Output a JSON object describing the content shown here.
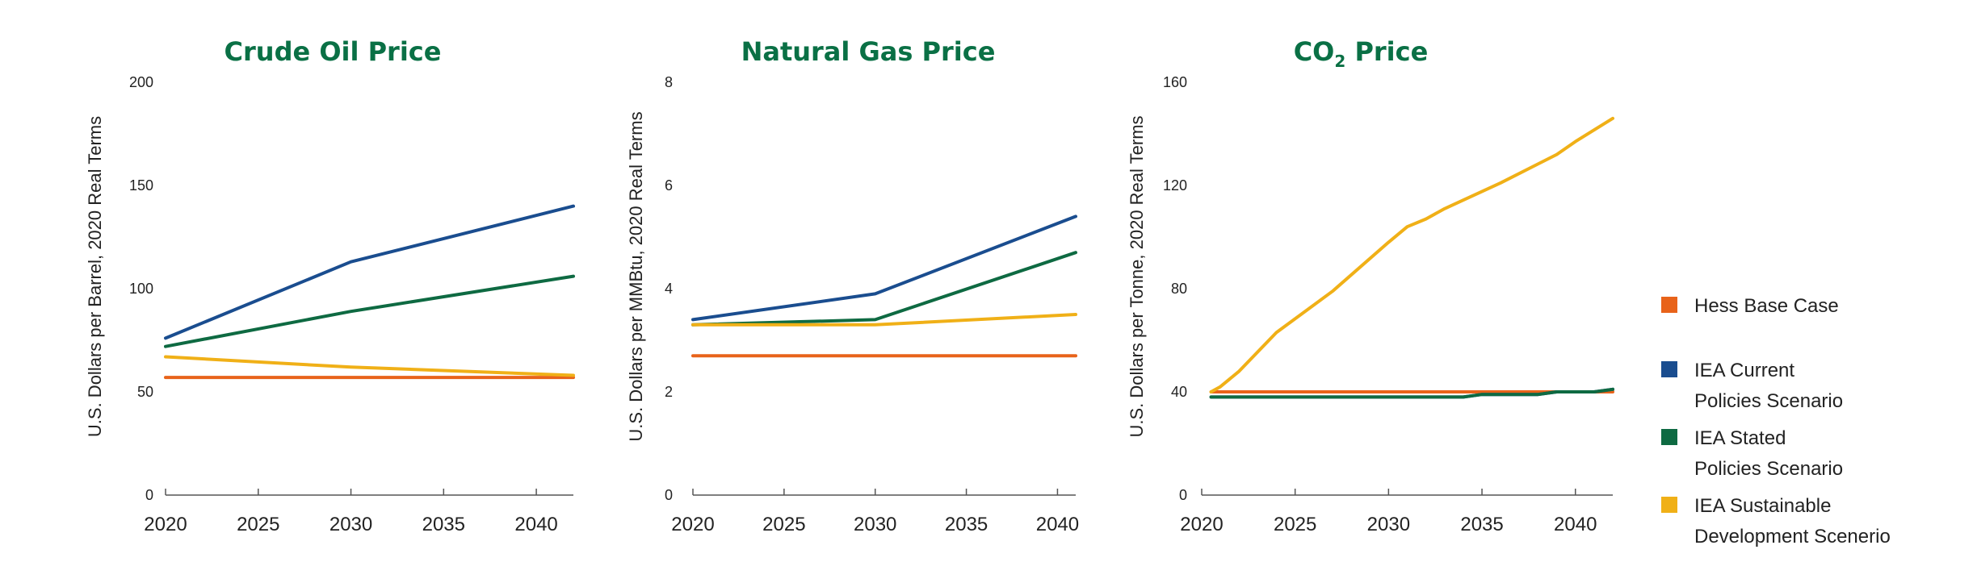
{
  "colors": {
    "title": "#0a7045",
    "hess": "#e8631a",
    "current": "#1a4d8f",
    "stated": "#0e6a42",
    "sustainable": "#f0b017"
  },
  "legend": [
    {
      "key": "hess",
      "lines": [
        "Hess Base Case"
      ]
    },
    {
      "key": "current",
      "lines": [
        "IEA Current",
        "Policies Scenario"
      ]
    },
    {
      "key": "stated",
      "lines": [
        "IEA Stated",
        "Policies Scenario"
      ]
    },
    {
      "key": "sustainable",
      "lines": [
        "IEA Sustainable",
        "Development Scenerio"
      ]
    }
  ],
  "chart_data": [
    {
      "type": "line",
      "title": "Crude Oil Price",
      "ylabel": "U.S. Dollars per Barrel, 2020 Real Terms",
      "xlabel": "",
      "ylim": [
        0,
        200
      ],
      "yticks": [
        0,
        50,
        100,
        150,
        200
      ],
      "xlim": [
        2020,
        2042
      ],
      "xticks": [
        2020,
        2025,
        2030,
        2035,
        2040
      ],
      "series": [
        {
          "key": "hess",
          "name": "Hess Base Case",
          "x": [
            2020,
            2042
          ],
          "values": [
            57,
            57
          ]
        },
        {
          "key": "current",
          "name": "IEA Current Policies Scenario",
          "x": [
            2020,
            2030,
            2042
          ],
          "values": [
            76,
            113,
            140
          ]
        },
        {
          "key": "stated",
          "name": "IEA Stated Policies Scenario",
          "x": [
            2020,
            2030,
            2042
          ],
          "values": [
            72,
            89,
            106
          ]
        },
        {
          "key": "sustainable",
          "name": "IEA Sustainable Development Scenerio",
          "x": [
            2020,
            2030,
            2042
          ],
          "values": [
            67,
            62,
            58
          ]
        }
      ]
    },
    {
      "type": "line",
      "title": "Natural Gas Price",
      "ylabel": "U.S. Dollars per MMBtu, 2020 Real Terms",
      "xlabel": "",
      "ylim": [
        0,
        8
      ],
      "yticks": [
        0,
        2,
        4,
        6,
        8
      ],
      "xlim": [
        2020,
        2041
      ],
      "xticks": [
        2020,
        2025,
        2030,
        2035,
        2040
      ],
      "series": [
        {
          "key": "hess",
          "name": "Hess Base Case",
          "x": [
            2020,
            2041
          ],
          "values": [
            2.7,
            2.7
          ]
        },
        {
          "key": "current",
          "name": "IEA Current Policies Scenario",
          "x": [
            2020,
            2030,
            2041
          ],
          "values": [
            3.4,
            3.9,
            5.4
          ]
        },
        {
          "key": "stated",
          "name": "IEA Stated Policies Scenario",
          "x": [
            2020,
            2030,
            2041
          ],
          "values": [
            3.3,
            3.4,
            4.7
          ]
        },
        {
          "key": "sustainable",
          "name": "IEA Sustainable Development Scenerio",
          "x": [
            2020,
            2030,
            2041
          ],
          "values": [
            3.3,
            3.3,
            3.5
          ]
        }
      ]
    },
    {
      "type": "line",
      "title": "CO",
      "title_sub": "2",
      "title_suffix": " Price",
      "ylabel": "U.S. Dollars per Tonne, 2020 Real Terms",
      "xlabel": "",
      "ylim": [
        0,
        160
      ],
      "yticks": [
        0,
        40,
        80,
        120,
        160
      ],
      "xlim": [
        2020,
        2042
      ],
      "xticks": [
        2020,
        2025,
        2030,
        2035,
        2040
      ],
      "series": [
        {
          "key": "hess",
          "name": "Hess Base Case",
          "x": [
            2020.5,
            2042
          ],
          "values": [
            40,
            40
          ]
        },
        {
          "key": "current",
          "name": "IEA Current Policies Scenario",
          "x": [
            2020.5,
            2034,
            2035,
            2038,
            2039,
            2041,
            2042
          ],
          "values": [
            38,
            38,
            39,
            39,
            40,
            40,
            41
          ]
        },
        {
          "key": "stated",
          "name": "IEA Stated Policies Scenario",
          "x": [
            2020.5,
            2034,
            2035,
            2038,
            2039,
            2041,
            2042
          ],
          "values": [
            38,
            38,
            39,
            39,
            40,
            40,
            41
          ]
        },
        {
          "key": "sustainable",
          "name": "IEA Sustainable Development Scenerio",
          "x": [
            2020.5,
            2021,
            2022,
            2024,
            2027,
            2030,
            2031,
            2032,
            2033,
            2036,
            2039,
            2040,
            2042
          ],
          "values": [
            40,
            42,
            48,
            63,
            79,
            98,
            104,
            107,
            111,
            121,
            132,
            137,
            146
          ]
        }
      ]
    }
  ]
}
